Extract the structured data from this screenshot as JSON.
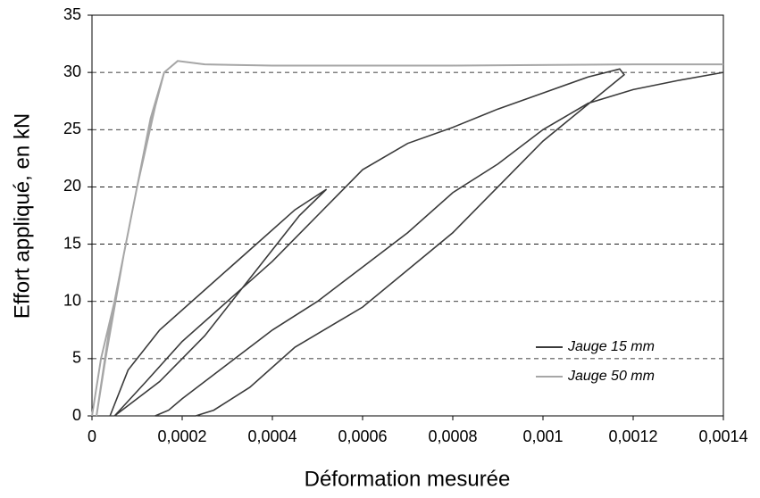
{
  "chart_data": {
    "type": "line",
    "xlabel": "Déformation mesurée",
    "ylabel": "Effort appliqué, en kN",
    "xlim": [
      0,
      0.0014
    ],
    "ylim": [
      0,
      35
    ],
    "xticks": [
      0,
      {
        "value": 0.0002,
        "label": "0,0002"
      },
      {
        "value": 0.0004,
        "label": "0,0004"
      },
      {
        "value": 0.0006,
        "label": "0,0006"
      },
      {
        "value": 0.0008,
        "label": "0,0008"
      },
      {
        "value": 0.001,
        "label": "0,001"
      },
      {
        "value": 0.0012,
        "label": "0,0012"
      },
      {
        "value": 0.0014,
        "label": "0,0014"
      }
    ],
    "yticks": [
      0,
      5,
      10,
      15,
      20,
      25,
      30,
      35
    ],
    "grid": true,
    "legend": "lower right",
    "series": [
      {
        "name": "Jauge 15 mm",
        "color": "#3a3a3a",
        "x": [
          4e-05,
          8e-05,
          0.00015,
          0.00025,
          0.00035,
          0.00045,
          0.00052,
          0.00046,
          0.00035,
          0.00025,
          0.00015,
          5e-05,
          0.00012,
          0.0002,
          0.0003,
          0.0004,
          0.0005,
          0.0006,
          0.0007,
          0.0008,
          0.0009,
          0.001,
          0.0011,
          0.00117,
          0.00118,
          0.001,
          0.0008,
          0.0006,
          0.00045,
          0.00035,
          0.00027,
          0.00023,
          0.00014,
          0.00017,
          0.0002,
          0.0003,
          0.0004,
          0.0005,
          0.0006,
          0.0007,
          0.0008,
          0.0009,
          0.001,
          0.0011,
          0.0012,
          0.0013,
          0.0014
        ],
        "values": [
          0,
          4,
          7.5,
          11,
          14.5,
          18,
          19.8,
          17.5,
          12,
          7,
          3,
          0,
          3,
          6.5,
          10,
          13.5,
          17.5,
          21.5,
          23.8,
          25.2,
          26.8,
          28.2,
          29.6,
          30.3,
          29.8,
          24,
          16,
          9.5,
          6,
          2.5,
          0.5,
          0,
          0,
          0.5,
          1.5,
          4.5,
          7.5,
          10,
          13,
          16,
          19.5,
          22,
          25,
          27.3,
          28.5,
          29.3,
          30
        ]
      },
      {
        "name": "Jauge 50 mm",
        "color": "#a6a6a6",
        "x": [
          0,
          2e-05,
          5e-05,
          0.0001,
          0.00014,
          0.00016,
          0.00012,
          7e-05,
          3e-05,
          1e-05,
          4e-05,
          9e-05,
          0.00013,
          0.00016,
          0.00019,
          0.00025,
          0.0004,
          0.0008,
          0.0012,
          0.0014
        ],
        "values": [
          0,
          5,
          10,
          20,
          27,
          30,
          24,
          14,
          5,
          0,
          8,
          18,
          26,
          30,
          31,
          30.7,
          30.6,
          30.6,
          30.7,
          30.7
        ]
      }
    ]
  }
}
